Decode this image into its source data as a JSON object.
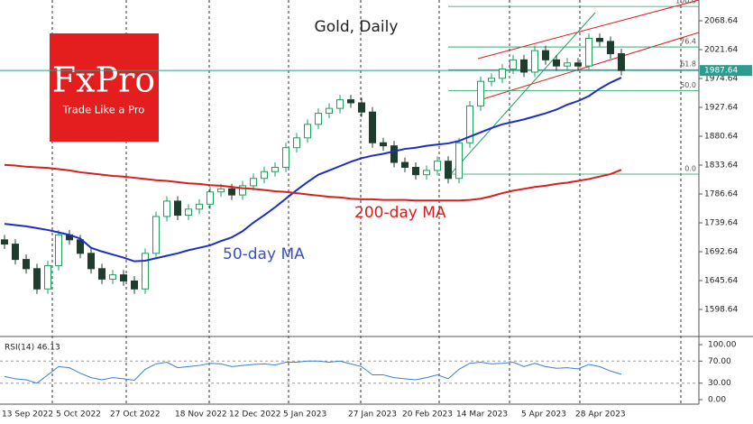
{
  "chart_data": {
    "type": "candlestick",
    "title": "Gold, Daily",
    "categories": [
      "13 Sep 2022",
      null,
      null,
      null,
      null,
      "5 Oct 2022",
      null,
      null,
      null,
      null,
      "27 Oct 2022",
      null,
      null,
      null,
      null,
      null,
      "18 Nov 2022",
      null,
      null,
      null,
      null,
      "12 Dec 2022",
      null,
      null,
      null,
      null,
      "5 Jan 2023",
      null,
      null,
      null,
      null,
      null,
      "27 Jan 2023",
      null,
      null,
      null,
      null,
      "20 Feb 2023",
      null,
      null,
      null,
      null,
      "14 Mar 2023",
      null,
      null,
      null,
      null,
      null,
      "5 Apr 2023",
      null,
      null,
      null,
      null,
      "28 Apr 2023",
      null,
      null,
      null,
      null
    ],
    "open": [
      1712,
      1705,
      1680,
      1665,
      1632,
      1670,
      1720,
      1712,
      1690,
      1665,
      1648,
      1655,
      1645,
      1632,
      1690,
      1750,
      1775,
      1752,
      1762,
      1770,
      1790,
      1795,
      1785,
      1800,
      1812,
      1823,
      1830,
      1862,
      1878,
      1900,
      1918,
      1926,
      1940,
      1935,
      1920,
      1870,
      1865,
      1838,
      1830,
      1818,
      1825,
      1840,
      1812,
      1870,
      1930,
      1970,
      1975,
      1990,
      2005,
      1985,
      2020,
      2005,
      1995,
      2000,
      1995,
      2040,
      2035,
      2015
    ],
    "high": [
      1720,
      1713,
      1688,
      1673,
      1678,
      1728,
      1728,
      1720,
      1698,
      1673,
      1663,
      1663,
      1653,
      1698,
      1758,
      1783,
      1783,
      1770,
      1778,
      1798,
      1803,
      1803,
      1808,
      1820,
      1831,
      1838,
      1870,
      1886,
      1908,
      1926,
      1934,
      1948,
      1948,
      1943,
      1928,
      1878,
      1873,
      1846,
      1838,
      1833,
      1848,
      1848,
      1878,
      1938,
      1978,
      1983,
      1998,
      2013,
      2013,
      2028,
      2028,
      2013,
      2008,
      2008,
      2048,
      2048,
      2043,
      2023
    ],
    "low": [
      1697,
      1672,
      1657,
      1624,
      1624,
      1662,
      1704,
      1682,
      1657,
      1640,
      1640,
      1637,
      1624,
      1624,
      1682,
      1742,
      1744,
      1744,
      1754,
      1762,
      1782,
      1777,
      1777,
      1792,
      1804,
      1815,
      1822,
      1854,
      1870,
      1892,
      1910,
      1918,
      1927,
      1912,
      1862,
      1857,
      1830,
      1822,
      1810,
      1810,
      1817,
      1804,
      1804,
      1862,
      1922,
      1962,
      1967,
      1982,
      1977,
      1977,
      1997,
      1987,
      1987,
      1987,
      1987,
      2027,
      2007,
      1979.64
    ],
    "close": [
      1705,
      1680,
      1665,
      1632,
      1670,
      1720,
      1712,
      1690,
      1665,
      1648,
      1655,
      1645,
      1632,
      1690,
      1750,
      1775,
      1752,
      1762,
      1770,
      1790,
      1795,
      1785,
      1800,
      1812,
      1823,
      1830,
      1862,
      1878,
      1900,
      1918,
      1926,
      1940,
      1935,
      1920,
      1870,
      1865,
      1838,
      1830,
      1818,
      1825,
      1840,
      1812,
      1870,
      1930,
      1970,
      1975,
      1990,
      2005,
      1985,
      2020,
      2005,
      1995,
      2000,
      1995,
      2040,
      2035,
      2015,
      1987.64
    ],
    "up_color": "#1e9e5c",
    "down_color": "#1f3d2c",
    "series": [
      {
        "name": "50-day MA",
        "color": "#1a2fc4",
        "values": [
          1738,
          1736,
          1734,
          1731,
          1728,
          1724,
          1720,
          1714,
          1699,
          1693,
          1688,
          1683,
          1677,
          1678,
          1682,
          1686,
          1690,
          1695,
          1699,
          1703,
          1710,
          1716,
          1726,
          1740,
          1752,
          1765,
          1779,
          1793,
          1806,
          1818,
          1825,
          1832,
          1839,
          1845,
          1849,
          1852,
          1856,
          1860,
          1862,
          1865,
          1867,
          1869,
          1873,
          1880,
          1887,
          1894,
          1900,
          1904,
          1908,
          1913,
          1918,
          1924,
          1932,
          1938,
          1946,
          1958,
          1968,
          1976
        ]
      },
      {
        "name": "200-day MA",
        "color": "#d81e1e",
        "values": [
          1834,
          1833,
          1831,
          1830,
          1829,
          1827,
          1825,
          1822,
          1820,
          1818,
          1816,
          1815,
          1813,
          1811,
          1809,
          1808,
          1806,
          1804,
          1803,
          1801,
          1800,
          1798,
          1796,
          1795,
          1793,
          1791,
          1790,
          1788,
          1786,
          1784,
          1782,
          1781,
          1779,
          1778,
          1778,
          1777,
          1777,
          1777,
          1776,
          1776,
          1776,
          1776,
          1776,
          1777,
          1779,
          1783,
          1788,
          1792,
          1795,
          1798,
          1800,
          1803,
          1805,
          1808,
          1811,
          1815,
          1819,
          1826
        ]
      }
    ],
    "last_price": 1987.64,
    "ylim": [
      1559,
      2099.5
    ],
    "yticks": [
      1598.64,
      1645.64,
      1692.64,
      1739.64,
      1786.64,
      1833.64,
      1880.64,
      1927.64,
      1974.64,
      2021.64,
      2068.64
    ],
    "fib": {
      "levels": [
        {
          "value": 100,
          "label": "100.0"
        },
        76.4,
        61.8,
        {
          "value": 50,
          "label": "50.0"
        },
        {
          "value": 0,
          "label": "0.0"
        }
      ],
      "prices": [
        2092,
        2026,
        1989,
        1955,
        1819
      ]
    },
    "rsi": {
      "label": "RSI(14) 46.13",
      "color": "#3a7fd8",
      "values": [
        42,
        38,
        36,
        30,
        45,
        60,
        58,
        48,
        40,
        36,
        40,
        38,
        35,
        55,
        65,
        68,
        58,
        60,
        62,
        66,
        65,
        60,
        62,
        64,
        65,
        63,
        68,
        68,
        70,
        70,
        68,
        70,
        65,
        60,
        45,
        45,
        40,
        38,
        36,
        40,
        45,
        38,
        55,
        66,
        68,
        65,
        66,
        68,
        60,
        66,
        60,
        57,
        58,
        56,
        64,
        60,
        52,
        46.13
      ],
      "ylim": [
        0,
        100
      ],
      "yticks": [
        {
          "value": 100,
          "label": "100.00"
        },
        {
          "value": 70,
          "label": "70.00"
        },
        {
          "value": 30,
          "label": "30.00"
        },
        {
          "value": 0,
          "label": "0.00"
        }
      ]
    },
    "logo": {
      "brand": "FxPro",
      "tagline": "Trade Like a Pro"
    }
  }
}
